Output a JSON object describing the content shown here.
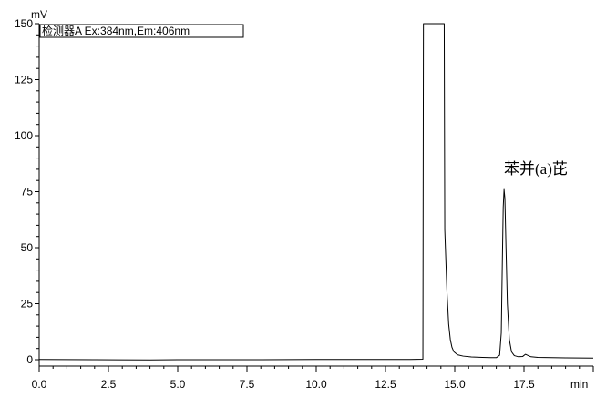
{
  "chart_data": {
    "type": "line",
    "title": "",
    "legend": "检测器A Ex:384nm,Em:406nm",
    "legend_position": "top-left",
    "xlabel": "min",
    "ylabel": "mV",
    "xlim": [
      0,
      20
    ],
    "ylim": [
      -3,
      150
    ],
    "x_major_ticks": [
      0,
      2.5,
      5,
      7.5,
      10,
      12.5,
      15,
      17.5
    ],
    "x_tick_labels": [
      "0.0",
      "2.5",
      "5.0",
      "7.5",
      "10.0",
      "12.5",
      "15.0",
      "17.5"
    ],
    "y_major_ticks": [
      0,
      25,
      50,
      75,
      100,
      125,
      150
    ],
    "y_tick_labels": [
      "0",
      "25",
      "50",
      "75",
      "100",
      "125",
      "150"
    ],
    "grid": false,
    "annotations": [
      {
        "text": "苯并(a)芘",
        "x": 16.8,
        "y": 76
      }
    ],
    "series": [
      {
        "x": [
          0,
          2,
          4,
          5,
          6,
          8,
          10,
          12,
          13.4,
          13.85,
          13.87,
          14.02,
          14.5,
          14.62,
          14.64,
          14.72,
          14.78,
          14.84,
          14.9,
          14.97,
          15.1,
          15.3,
          15.6,
          16.0,
          16.3,
          16.5,
          16.62,
          16.68,
          16.72,
          16.75,
          16.78,
          16.81,
          16.85,
          16.9,
          16.97,
          17.05,
          17.15,
          17.3,
          17.45,
          17.55,
          17.62,
          17.75,
          18.0,
          19.0,
          20.0
        ],
        "y": [
          0.1,
          0.0,
          -0.1,
          0.0,
          0.0,
          0.0,
          0.1,
          0.1,
          0.1,
          0.2,
          150,
          150,
          150,
          150,
          58,
          30,
          16,
          9,
          5.5,
          3.5,
          2.2,
          1.6,
          1.2,
          1.0,
          0.9,
          0.9,
          2,
          12,
          45,
          68,
          76,
          72,
          50,
          25,
          9,
          3.5,
          1.8,
          1.3,
          1.4,
          2.4,
          2.0,
          1.3,
          1.0,
          0.8,
          0.7
        ]
      }
    ]
  }
}
